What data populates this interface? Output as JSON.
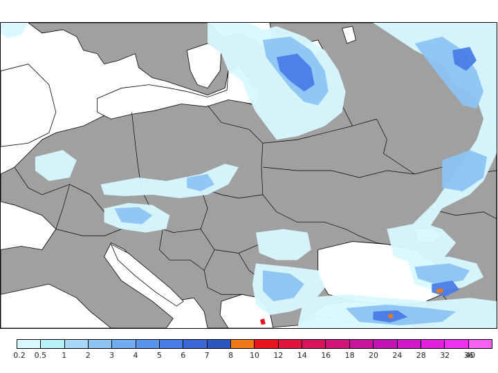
{
  "map": {
    "land_color": "#a0a0a0",
    "water_color": "#ffffff",
    "border_color": "#000000"
  },
  "legend": {
    "swatches": [
      "#d8f8ff",
      "#b8f0fa",
      "#a8d8f8",
      "#8cc4f4",
      "#72acf0",
      "#5a94ec",
      "#4a7ce8",
      "#3a68d8",
      "#2c56c0",
      "#f07818",
      "#e8141e",
      "#e0143c",
      "#d8145a",
      "#d0147a",
      "#c8149a",
      "#c014b4",
      "#d018c8",
      "#e020dc",
      "#f030f0",
      "#f860f4"
    ],
    "labels": [
      "0.2",
      "0.5",
      "1",
      "2",
      "3",
      "4",
      "5",
      "6",
      "7",
      "8",
      "10",
      "12",
      "14",
      "16",
      "18",
      "20",
      "24",
      "28",
      "32",
      "36",
      "40"
    ]
  }
}
